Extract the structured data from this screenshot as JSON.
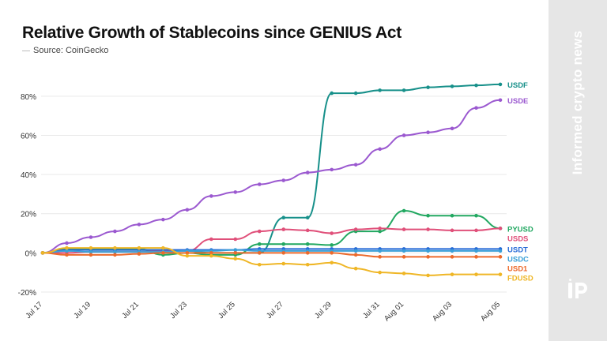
{
  "header": {
    "title": "Relative Growth of Stablecoins since GENIUS Act",
    "source": "Source: CoinGecko"
  },
  "side_panel": {
    "text": "Informed crypto news",
    "logo_icon": "ip-logo-icon"
  },
  "chart_data": {
    "type": "line",
    "title": "Relative Growth of Stablecoins since GENIUS Act",
    "xlabel": "",
    "ylabel": "",
    "ylim": [
      -20,
      90
    ],
    "y_ticks": [
      -20,
      0,
      20,
      40,
      60,
      80
    ],
    "y_tick_labels": [
      "-20%",
      "0%",
      "20%",
      "40%",
      "60%",
      "80%"
    ],
    "x_tick_labels": [
      "Jul 17",
      "Jul 19",
      "Jul 21",
      "Jul 23",
      "Jul 25",
      "Jul 27",
      "Jul 29",
      "Jul 31",
      "Aug 01",
      "Aug 03",
      "Aug 05"
    ],
    "x_tick_positions": [
      0,
      2,
      4,
      6,
      8,
      10,
      12,
      14,
      15,
      17,
      19
    ],
    "x": [
      "Jul 17",
      "Jul 18",
      "Jul 19",
      "Jul 20",
      "Jul 21",
      "Jul 22",
      "Jul 23",
      "Jul 24",
      "Jul 25",
      "Jul 26",
      "Jul 27",
      "Jul 28",
      "Jul 29",
      "Jul 30",
      "Jul 31",
      "Aug 01",
      "Aug 02",
      "Aug 03",
      "Aug 04",
      "Aug 05"
    ],
    "grid": "horizontal",
    "legend": "line-end labels",
    "series": [
      {
        "name": "USDF",
        "color": "#17908a",
        "values": [
          0,
          2,
          1.5,
          1.5,
          1.5,
          1,
          1,
          0,
          0,
          0,
          18,
          18,
          81.5,
          81.5,
          83,
          83,
          84.5,
          85,
          85.5,
          86
        ]
      },
      {
        "name": "USDE",
        "color": "#9b59d0",
        "values": [
          0,
          5,
          8,
          11,
          14.5,
          17,
          22,
          29,
          31,
          35,
          37,
          41,
          42.5,
          45,
          53,
          60,
          61.5,
          63.5,
          74,
          78
        ]
      },
      {
        "name": "PYUSD",
        "color": "#22a861",
        "values": [
          0,
          2,
          2,
          2,
          2,
          -1,
          0,
          -1,
          -1,
          4.5,
          4.5,
          4.5,
          4,
          11,
          11,
          21.5,
          19,
          19,
          19,
          12.5
        ]
      },
      {
        "name": "USDS",
        "color": "#e0507a",
        "values": [
          0,
          0,
          0.5,
          0.5,
          0.5,
          1,
          1,
          7,
          7,
          11,
          12,
          11.5,
          10,
          12,
          12.5,
          12,
          12,
          11.5,
          11.5,
          12.5
        ]
      },
      {
        "name": "USDT",
        "color": "#2569d6",
        "values": [
          0,
          1.5,
          1.5,
          1.5,
          1.5,
          1.5,
          1.5,
          1.5,
          1.5,
          2,
          2,
          2,
          2,
          2,
          2,
          2,
          2,
          2,
          2,
          2
        ]
      },
      {
        "name": "USDC",
        "color": "#3aa0d8",
        "values": [
          0,
          1,
          0.5,
          0.5,
          0.5,
          0.5,
          1,
          1,
          1.5,
          1,
          1,
          1,
          1,
          1,
          1,
          1,
          1,
          1,
          1,
          1
        ]
      },
      {
        "name": "USD1",
        "color": "#ec6a2c",
        "values": [
          0,
          -1,
          -1,
          -1,
          -0.5,
          0,
          0,
          0,
          0,
          0,
          0,
          0,
          0,
          -1,
          -2,
          -2,
          -2,
          -2,
          -2,
          -2
        ]
      },
      {
        "name": "FDUSD",
        "color": "#efb626",
        "values": [
          0,
          2.5,
          2.5,
          2.5,
          2.5,
          2.5,
          -1.5,
          -1.5,
          -3,
          -6,
          -5.5,
          -6,
          -5,
          -8,
          -10,
          -10.5,
          -11.5,
          -11,
          -11,
          -11
        ]
      }
    ],
    "label_offsets_note": ""
  }
}
